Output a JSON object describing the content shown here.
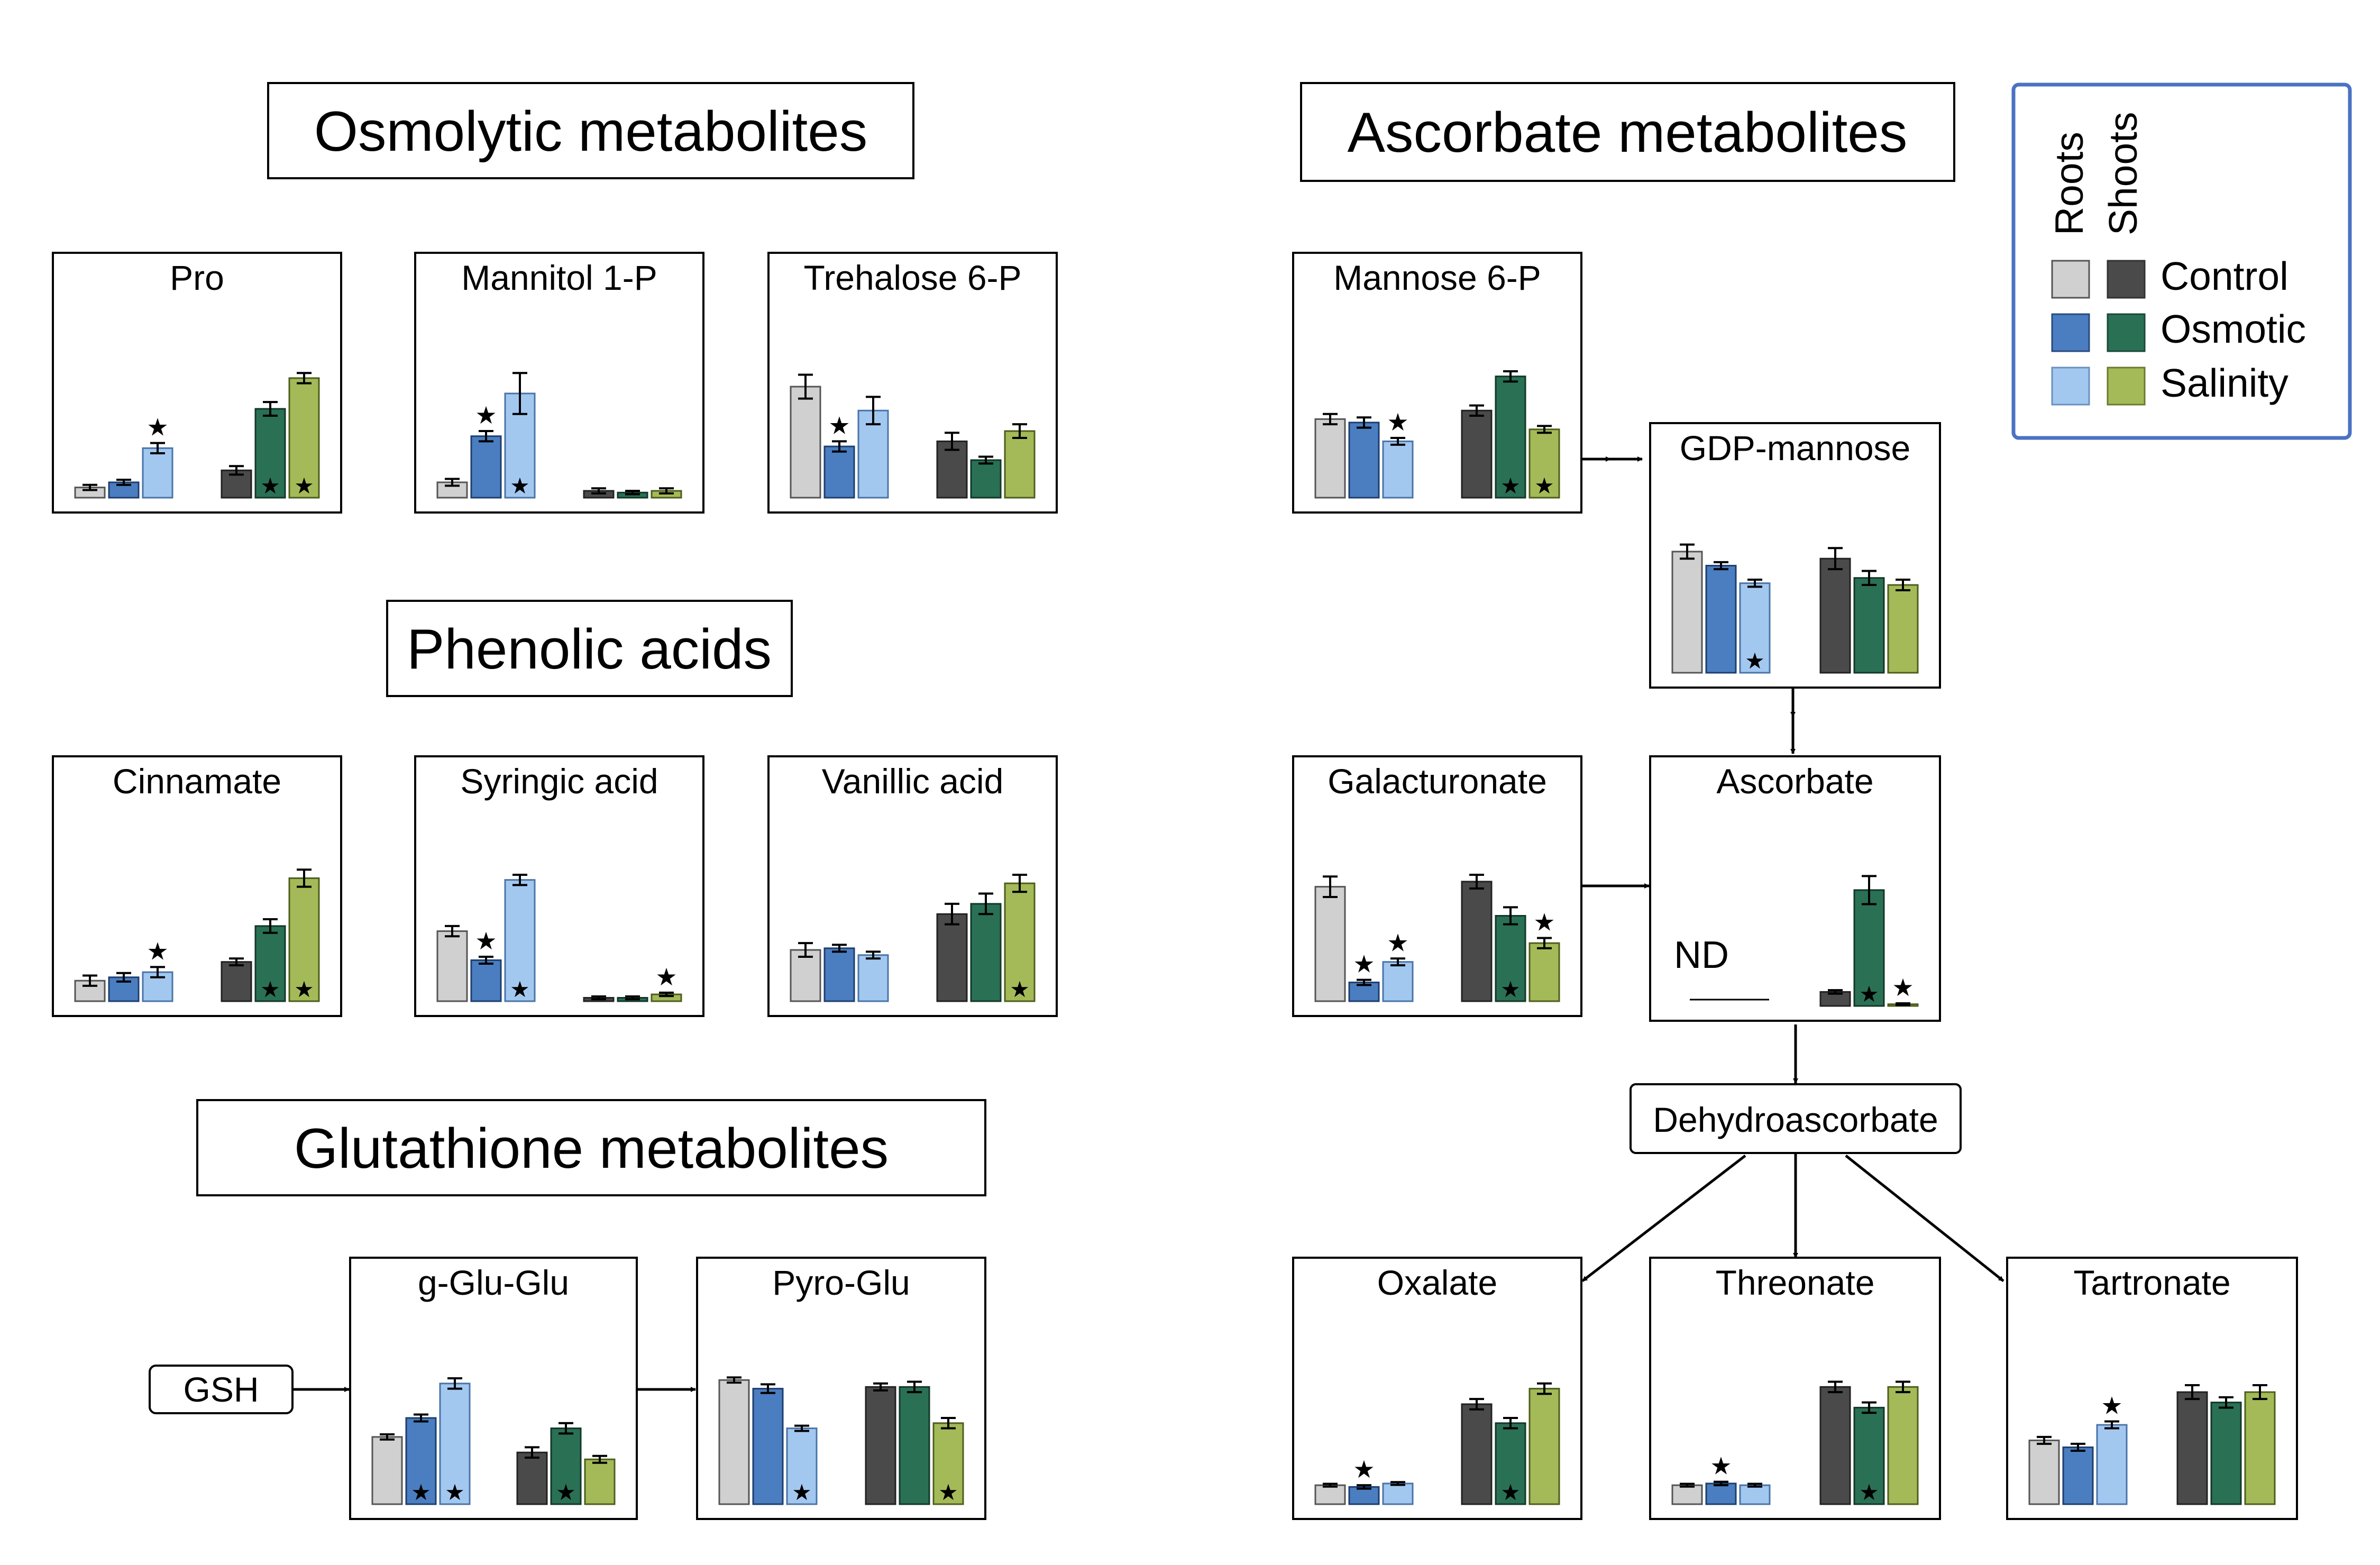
{
  "colors": {
    "roots_control": "#D0D0D0",
    "roots_osmotic": "#4A7EC0",
    "roots_salinity": "#A3C8F0",
    "shoots_control": "#4A4A4A",
    "shoots_osmotic": "#2A7055",
    "shoots_salinity": "#A4BA58",
    "legend_border": "#4A72C4"
  },
  "headers": {
    "osmolytic": "Osmolytic metabolites",
    "phenolic": "Phenolic acids",
    "glutathione": "Glutathione metabolites",
    "ascorbate": "Ascorbate metabolites"
  },
  "legend": {
    "roots": "Roots",
    "shoots": "Shoots",
    "control": "Control",
    "osmotic": "Osmotic",
    "salinity": "Salinity"
  },
  "pathway_nodes": {
    "gsh": "GSH",
    "dehydroascorbate": "Dehydroascorbate"
  },
  "chart_data": [
    {
      "id": "pro",
      "title": "Pro",
      "type": "bar",
      "unit": "relative level (0-100)",
      "categories": [
        "Roots Control",
        "Roots Osmotic",
        "Roots Salinity",
        "Shoots Control",
        "Shoots Osmotic",
        "Shoots Salinity"
      ],
      "values": [
        6,
        9,
        29,
        16,
        52,
        70
      ],
      "errors": [
        1.5,
        1.5,
        3,
        2.5,
        4,
        3
      ],
      "top_star": [
        false,
        false,
        true,
        false,
        false,
        false
      ],
      "inner_star": [
        false,
        false,
        false,
        false,
        true,
        true
      ]
    },
    {
      "id": "mannitol",
      "title": "Mannitol 1-P",
      "type": "bar",
      "unit": "relative level (0-100)",
      "categories": [
        "Roots Control",
        "Roots Osmotic",
        "Roots Salinity",
        "Shoots Control",
        "Shoots Osmotic",
        "Shoots Salinity"
      ],
      "values": [
        9,
        36,
        61,
        4,
        3,
        4
      ],
      "errors": [
        2,
        3,
        12,
        1.5,
        1,
        1.5
      ],
      "top_star": [
        false,
        true,
        false,
        false,
        false,
        false
      ],
      "inner_star": [
        false,
        false,
        true,
        false,
        false,
        false
      ]
    },
    {
      "id": "trehalose",
      "title": "Trehalose 6-P",
      "type": "bar",
      "unit": "relative level (0-100)",
      "categories": [
        "Roots Control",
        "Roots Osmotic",
        "Roots Salinity",
        "Shoots Control",
        "Shoots Osmotic",
        "Shoots Salinity"
      ],
      "values": [
        65,
        30,
        51,
        33,
        22,
        39
      ],
      "errors": [
        7,
        3,
        8,
        5,
        2,
        4
      ],
      "top_star": [
        false,
        true,
        false,
        false,
        false,
        false
      ],
      "inner_star": [
        false,
        false,
        false,
        false,
        false,
        false
      ]
    },
    {
      "id": "cinnamate",
      "title": "Cinnamate",
      "type": "bar",
      "unit": "relative level (0-100)",
      "categories": [
        "Roots Control",
        "Roots Osmotic",
        "Roots Salinity",
        "Shoots Control",
        "Shoots Osmotic",
        "Shoots Salinity"
      ],
      "values": [
        12,
        14,
        17,
        23,
        44,
        72
      ],
      "errors": [
        3,
        2.5,
        3,
        2,
        4,
        5
      ],
      "top_star": [
        false,
        false,
        true,
        false,
        false,
        false
      ],
      "inner_star": [
        false,
        false,
        false,
        false,
        true,
        true
      ]
    },
    {
      "id": "syringic",
      "title": "Syringic acid",
      "type": "bar",
      "unit": "relative level (0-100)",
      "categories": [
        "Roots Control",
        "Roots Osmotic",
        "Roots Salinity",
        "Shoots Control",
        "Shoots Osmotic",
        "Shoots Salinity"
      ],
      "values": [
        41,
        24,
        71,
        2,
        2,
        4
      ],
      "errors": [
        3,
        2,
        3,
        0.8,
        0.8,
        1
      ],
      "top_star": [
        false,
        true,
        false,
        false,
        false,
        true
      ],
      "inner_star": [
        false,
        false,
        true,
        false,
        false,
        false
      ]
    },
    {
      "id": "vanillic",
      "title": "Vanillic acid",
      "type": "bar",
      "unit": "relative level (0-100)",
      "categories": [
        "Roots Control",
        "Roots Osmotic",
        "Roots Salinity",
        "Shoots Control",
        "Shoots Osmotic",
        "Shoots Salinity"
      ],
      "values": [
        30,
        31,
        27,
        51,
        57,
        69
      ],
      "errors": [
        4,
        2,
        2,
        6,
        6,
        5
      ],
      "top_star": [
        false,
        false,
        false,
        false,
        false,
        false
      ],
      "inner_star": [
        false,
        false,
        false,
        false,
        false,
        true
      ]
    },
    {
      "id": "gglu",
      "title": "g-Glu-Glu",
      "type": "bar",
      "unit": "relative level (0-100)",
      "categories": [
        "Roots Control",
        "Roots Osmotic",
        "Roots Salinity",
        "Shoots Control",
        "Shoots Osmotic",
        "Shoots Salinity"
      ],
      "values": [
        39,
        50,
        70,
        30,
        44,
        26
      ],
      "errors": [
        1.5,
        2,
        3,
        3,
        3,
        2
      ],
      "top_star": [
        false,
        false,
        false,
        false,
        false,
        false
      ],
      "inner_star": [
        false,
        true,
        true,
        false,
        true,
        false
      ]
    },
    {
      "id": "pyroglu",
      "title": "Pyro-Glu",
      "type": "bar",
      "unit": "relative level (0-100)",
      "categories": [
        "Roots Control",
        "Roots Osmotic",
        "Roots Salinity",
        "Shoots Control",
        "Shoots Osmotic",
        "Shoots Salinity"
      ],
      "values": [
        72,
        67,
        44,
        68,
        68,
        47
      ],
      "errors": [
        1.5,
        2.5,
        1.5,
        2,
        3,
        3
      ],
      "top_star": [
        false,
        false,
        false,
        false,
        false,
        false
      ],
      "inner_star": [
        false,
        false,
        true,
        false,
        false,
        true
      ]
    },
    {
      "id": "mannose",
      "title": "Mannose 6-P",
      "type": "bar",
      "unit": "relative level (0-100)",
      "categories": [
        "Roots Control",
        "Roots Osmotic",
        "Roots Salinity",
        "Shoots Control",
        "Shoots Osmotic",
        "Shoots Salinity"
      ],
      "values": [
        46,
        44,
        33,
        51,
        71,
        40
      ],
      "errors": [
        3,
        3,
        2,
        3,
        3,
        2
      ],
      "top_star": [
        false,
        false,
        true,
        false,
        false,
        false
      ],
      "inner_star": [
        false,
        false,
        false,
        false,
        true,
        true
      ]
    },
    {
      "id": "gdpmannose",
      "title": "GDP-mannose",
      "type": "bar",
      "unit": "relative level (0-100)",
      "categories": [
        "Roots Control",
        "Roots Osmotic",
        "Roots Salinity",
        "Shoots Control",
        "Shoots Osmotic",
        "Shoots Salinity"
      ],
      "values": [
        69,
        61,
        51,
        65,
        54,
        50
      ],
      "errors": [
        4,
        2,
        2,
        6,
        4,
        3
      ],
      "top_star": [
        false,
        false,
        false,
        false,
        false,
        false
      ],
      "inner_star": [
        false,
        false,
        true,
        false,
        false,
        false
      ]
    },
    {
      "id": "galacturonate",
      "title": "Galacturonate",
      "type": "bar",
      "unit": "relative level (0-100)",
      "categories": [
        "Roots Control",
        "Roots Osmotic",
        "Roots Salinity",
        "Shoots Control",
        "Shoots Osmotic",
        "Shoots Salinity"
      ],
      "values": [
        67,
        11,
        23,
        70,
        50,
        34
      ],
      "errors": [
        6,
        1.5,
        2,
        4,
        5,
        3
      ],
      "top_star": [
        false,
        true,
        true,
        false,
        false,
        true
      ],
      "inner_star": [
        false,
        false,
        false,
        false,
        true,
        false
      ]
    },
    {
      "id": "ascorbate",
      "title": "Ascorbate",
      "type": "bar",
      "unit": "relative level (0-100)",
      "roots_label": "ND",
      "categories": [
        "Roots Control",
        "Roots Osmotic",
        "Roots Salinity",
        "Shoots Control",
        "Shoots Osmotic",
        "Shoots Salinity"
      ],
      "values": [
        null,
        null,
        null,
        8,
        66,
        1
      ],
      "errors": [
        0,
        0,
        0,
        1,
        8,
        0.5
      ],
      "top_star": [
        false,
        false,
        false,
        false,
        false,
        true
      ],
      "inner_star": [
        false,
        false,
        false,
        false,
        true,
        false
      ]
    },
    {
      "id": "oxalate",
      "title": "Oxalate",
      "type": "bar",
      "unit": "relative level (0-100)",
      "categories": [
        "Roots Control",
        "Roots Osmotic",
        "Roots Salinity",
        "Shoots Control",
        "Shoots Osmotic",
        "Shoots Salinity"
      ],
      "values": [
        11,
        10,
        12,
        58,
        47,
        67
      ],
      "errors": [
        0.8,
        1,
        0.8,
        3,
        3,
        3
      ],
      "top_star": [
        false,
        true,
        false,
        false,
        false,
        false
      ],
      "inner_star": [
        false,
        false,
        false,
        false,
        true,
        false
      ]
    },
    {
      "id": "threonate",
      "title": "Threonate",
      "type": "bar",
      "unit": "relative level (0-100)",
      "categories": [
        "Roots Control",
        "Roots Osmotic",
        "Roots Salinity",
        "Shoots Control",
        "Shoots Osmotic",
        "Shoots Salinity"
      ],
      "values": [
        11,
        12,
        11,
        68,
        56,
        68
      ],
      "errors": [
        0.8,
        1,
        0.8,
        3,
        3,
        3
      ],
      "top_star": [
        false,
        true,
        false,
        false,
        false,
        false
      ],
      "inner_star": [
        false,
        false,
        false,
        false,
        true,
        false
      ]
    },
    {
      "id": "tartronate",
      "title": "Tartronate",
      "type": "bar",
      "unit": "relative level (0-100)",
      "categories": [
        "Roots Control",
        "Roots Osmotic",
        "Roots Salinity",
        "Shoots Control",
        "Shoots Osmotic",
        "Shoots Salinity"
      ],
      "values": [
        37,
        33,
        46,
        65,
        59,
        65
      ],
      "errors": [
        2,
        2,
        2,
        4,
        3,
        4
      ],
      "top_star": [
        false,
        false,
        true,
        false,
        false,
        false
      ],
      "inner_star": [
        false,
        false,
        false,
        false,
        false,
        false
      ]
    }
  ]
}
